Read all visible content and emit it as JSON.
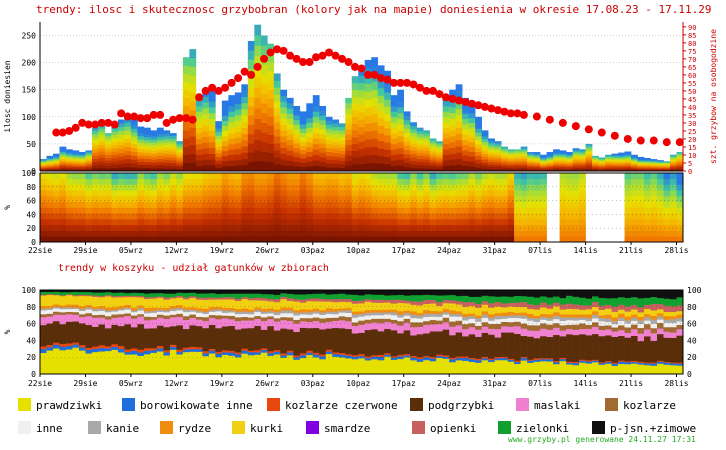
{
  "header": {
    "title": "trendy: ilosc i skutecznosc grzybobran (kolory jak na mapie)",
    "period": "doniesienia w okresie 17.08.23 - 17.11.29"
  },
  "chart_data": [
    {
      "type": "bar",
      "title": "trendy: ilosc i skutecznosc grzybobran (kolory jak na mapie)",
      "ylabel": "ilosc doniesien",
      "y2label": "szt. grzybow na osobogodzine",
      "ylim": [
        0,
        275
      ],
      "y2lim": [
        0,
        93
      ],
      "y_ticks": [
        "0",
        "50",
        "100",
        "150",
        "200",
        "250"
      ],
      "y2_ticks": [
        "0",
        "5",
        "10",
        "15",
        "20",
        "25",
        "30",
        "35",
        "40",
        "45",
        "50",
        "55",
        "60",
        "65",
        "70",
        "75",
        "80",
        "85",
        "90"
      ],
      "days": 99,
      "count_values": [
        22,
        28,
        32,
        45,
        40,
        38,
        35,
        38,
        80,
        85,
        70,
        85,
        95,
        105,
        100,
        82,
        80,
        75,
        80,
        75,
        70,
        55,
        210,
        225,
        140,
        148,
        150,
        92,
        130,
        140,
        145,
        160,
        240,
        270,
        250,
        235,
        180,
        150,
        135,
        120,
        110,
        125,
        140,
        120,
        100,
        95,
        88,
        135,
        175,
        190,
        205,
        210,
        195,
        185,
        140,
        150,
        110,
        90,
        80,
        75,
        60,
        55,
        140,
        150,
        160,
        135,
        125,
        100,
        75,
        60,
        55,
        45,
        40,
        40,
        45,
        35,
        35,
        30,
        35,
        40,
        38,
        35,
        42,
        40,
        50,
        28,
        25,
        30,
        32,
        34,
        36,
        30,
        26,
        24,
        22,
        20,
        18,
        30,
        35
      ],
      "rate_days": [
        2,
        3,
        4,
        5,
        6,
        7,
        8,
        9,
        10,
        11,
        12,
        13,
        14,
        15,
        16,
        17,
        18,
        19,
        20,
        21,
        22,
        23,
        24,
        25,
        26,
        27,
        28,
        29,
        30,
        31,
        32,
        33,
        34,
        35,
        36,
        37,
        38,
        39,
        40,
        41,
        42,
        43,
        44,
        45,
        46,
        47,
        48,
        49,
        50,
        51,
        52,
        53,
        54,
        55,
        56,
        57,
        58,
        59,
        60,
        61,
        62,
        63,
        64,
        65,
        66,
        67,
        68,
        69,
        70,
        71,
        72,
        73,
        74,
        76,
        78,
        80,
        82,
        84,
        86,
        88,
        90,
        92,
        94,
        96,
        98
      ],
      "rate_values": [
        24,
        24,
        25,
        27,
        30,
        29,
        29,
        30,
        30,
        29,
        36,
        34,
        34,
        33,
        33,
        35,
        35,
        30,
        32,
        33,
        33,
        32,
        46,
        50,
        52,
        50,
        52,
        55,
        58,
        62,
        60,
        65,
        70,
        74,
        76,
        75,
        72,
        70,
        68,
        68,
        71,
        72,
        74,
        72,
        70,
        68,
        65,
        64,
        60,
        60,
        58,
        57,
        55,
        55,
        55,
        54,
        52,
        50,
        50,
        48,
        46,
        45,
        44,
        43,
        42,
        41,
        40,
        39,
        38,
        37,
        36,
        36,
        35,
        34,
        32,
        30,
        28,
        26,
        24,
        22,
        20,
        19,
        19,
        18,
        18
      ],
      "legend_position": "none"
    },
    {
      "type": "area",
      "ylabel": "%",
      "ylim": [
        0,
        100
      ],
      "y_ticks": [
        "0",
        "20",
        "40",
        "60",
        "80",
        "100"
      ],
      "x_tick_labels": [
        "22sie",
        "29sie",
        "05wrz",
        "12wrz",
        "19wrz",
        "26wrz",
        "03paz",
        "10paz",
        "17paz",
        "24paz",
        "31paz",
        "07lis",
        "14lis",
        "21lis",
        "28lis"
      ],
      "gaps": [
        "14lis",
        "21lis"
      ],
      "legend_position": "none"
    },
    {
      "type": "area",
      "title": "trendy w koszyku - udzial gatunkow w zbiorach",
      "title_text": "trendy w koszyku - udział gatunków w zbiorach",
      "ylabel": "%",
      "ylim": [
        0,
        100
      ],
      "y_ticks": [
        "0",
        "20",
        "40",
        "60",
        "80",
        "100"
      ],
      "x_tick_labels": [
        "22sie",
        "29sie",
        "05wrz",
        "12wrz",
        "19wrz",
        "26wrz",
        "03paz",
        "10paz",
        "17paz",
        "24paz",
        "31paz",
        "07lis",
        "14lis",
        "21lis",
        "28lis"
      ],
      "series": [
        {
          "name": "prawdziwki",
          "color": "#e6e000",
          "start": 28,
          "end": 10
        },
        {
          "name": "borowikowate inne",
          "color": "#1e6fdc",
          "start": 4,
          "end": 2
        },
        {
          "name": "kozlarze czerwone",
          "color": "#e84810",
          "start": 3,
          "end": 1
        },
        {
          "name": "podgrzybki",
          "color": "#5a2e08",
          "start": 25,
          "end": 28
        },
        {
          "name": "maslaki",
          "color": "#f080d0",
          "start": 10,
          "end": 7
        },
        {
          "name": "kozlarze",
          "color": "#a06a30",
          "start": 3,
          "end": 6
        },
        {
          "name": "inne",
          "color": "#f0f0f0",
          "start": 4,
          "end": 5
        },
        {
          "name": "kanie",
          "color": "#a8a8a8",
          "start": 2,
          "end": 4
        },
        {
          "name": "rydze",
          "color": "#f08c10",
          "start": 3,
          "end": 4
        },
        {
          "name": "kurki",
          "color": "#f0d010",
          "start": 12,
          "end": 5
        },
        {
          "name": "smardze",
          "color": "#8000e0",
          "start": 0,
          "end": 0
        },
        {
          "name": "opienki",
          "color": "#c86060",
          "start": 1,
          "end": 6
        },
        {
          "name": "zielonki",
          "color": "#10a030",
          "start": 3,
          "end": 9
        },
        {
          "name": "p-jsn.+zimowe",
          "color": "#101010",
          "start": 2,
          "end": 9
        }
      ],
      "legend_position": "bottom"
    }
  ],
  "legend": {
    "items": [
      {
        "label": "prawdziwki",
        "color": "#e6e000"
      },
      {
        "label": "borowikowate inne",
        "color": "#1e6fdc"
      },
      {
        "label": "kozlarze czerwone",
        "color": "#e84810"
      },
      {
        "label": "podgrzybki",
        "color": "#5a2e08"
      },
      {
        "label": "maslaki",
        "color": "#f080d0"
      },
      {
        "label": "kozlarze",
        "color": "#a06a30"
      },
      {
        "label": "inne",
        "color": "#f0f0f0"
      },
      {
        "label": "kanie",
        "color": "#a8a8a8"
      },
      {
        "label": "rydze",
        "color": "#f08c10"
      },
      {
        "label": "kurki",
        "color": "#f0d010"
      },
      {
        "label": "smardze",
        "color": "#8000e0"
      },
      {
        "label": "opienki",
        "color": "#c86060"
      },
      {
        "label": "zielonki",
        "color": "#10a030"
      },
      {
        "label": "p-jsn.+zimowe",
        "color": "#101010"
      }
    ]
  },
  "footer": {
    "credit": "www.grzyby.pl generowane 24.11.27 17:31"
  },
  "colors": {
    "title_red": "#cc0000",
    "rate_dots": "#ee0000",
    "axis": "#000000",
    "grid": "#aaaaaa"
  }
}
